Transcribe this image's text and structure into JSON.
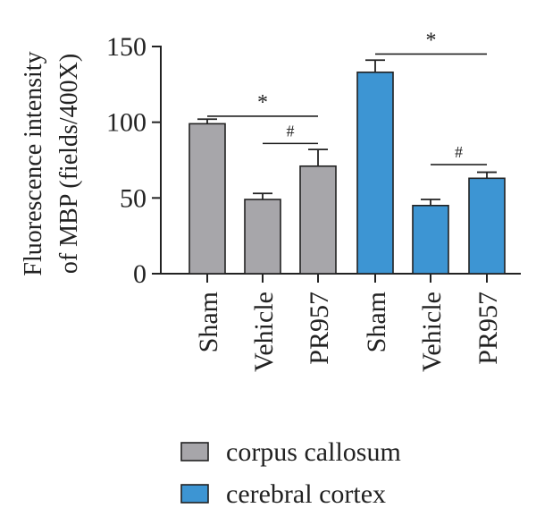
{
  "chart_data": {
    "type": "bar",
    "ylabel_line1": "Fluorescence intensity",
    "ylabel_line2": "of MBP (fields/400X)",
    "ylim": [
      0,
      150
    ],
    "yticks": [
      "0",
      "50",
      "100",
      "150"
    ],
    "categories": [
      "Sham",
      "Vehicle",
      "PR957",
      "Sham",
      "Vehicle",
      "PR957"
    ],
    "series": [
      {
        "name": "corpus callosum",
        "color": "#a7a6aa",
        "indices": [
          0,
          1,
          2
        ]
      },
      {
        "name": "cerebral cortex",
        "color": "#3d95d3",
        "indices": [
          3,
          4,
          5
        ]
      }
    ],
    "values": [
      99,
      49,
      71,
      133,
      45,
      63
    ],
    "errors": [
      3,
      4,
      11,
      8,
      4,
      4
    ],
    "annotations": [
      {
        "text": "*",
        "from": 0,
        "to": 2,
        "y": 104
      },
      {
        "text": "#",
        "from": 1,
        "to": 2,
        "y": 86
      },
      {
        "text": "*",
        "from": 3,
        "to": 5,
        "y": 145
      },
      {
        "text": "#",
        "from": 4,
        "to": 5,
        "y": 72
      }
    ],
    "grid": false,
    "legend_position": "bottom-center"
  }
}
